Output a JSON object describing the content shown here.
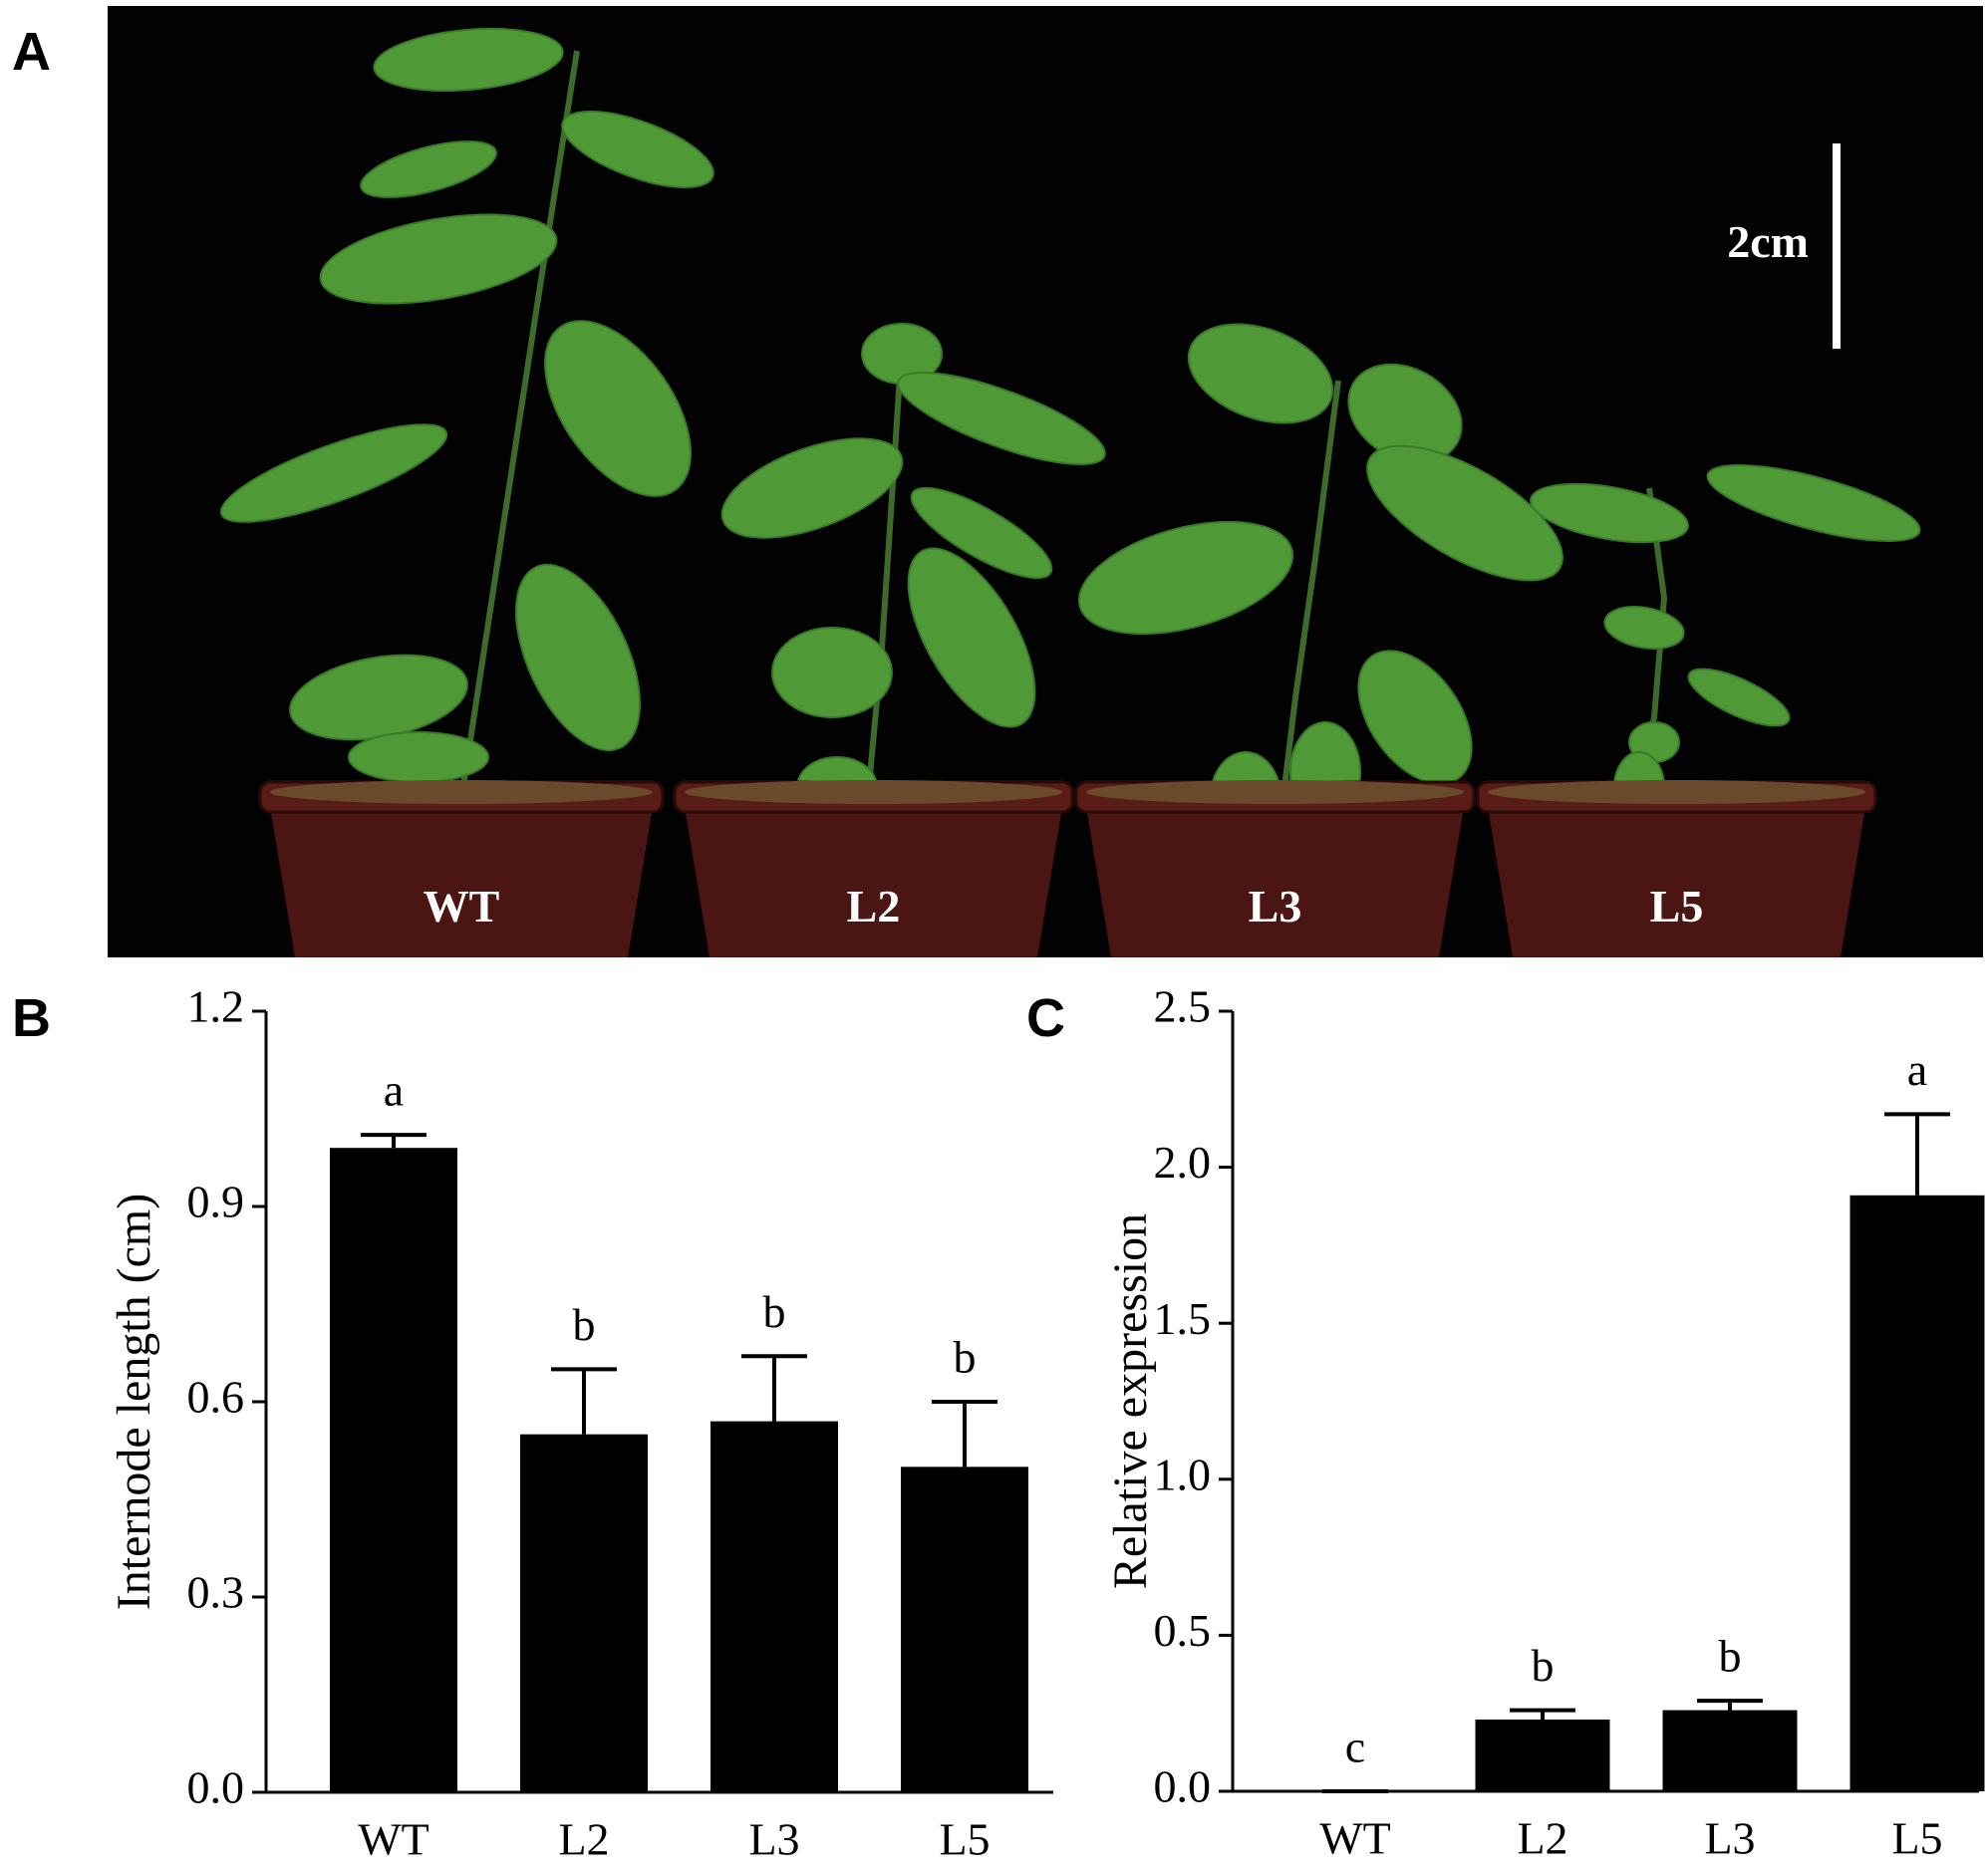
{
  "panel_labels": [
    "A",
    "B",
    "C"
  ],
  "photo": {
    "scale_bar": "2cm",
    "labels": [
      "WT",
      "L2",
      "L3",
      "L5"
    ]
  },
  "chart_data": [
    {
      "type": "bar",
      "ylabel": "Internode length (cm)",
      "categories": [
        "WT",
        "L2",
        "L3",
        "L5"
      ],
      "values": [
        0.99,
        0.55,
        0.57,
        0.5
      ],
      "errors": [
        0.02,
        0.1,
        0.1,
        0.1
      ],
      "annotations": [
        "a",
        "b",
        "b",
        "b"
      ],
      "color": "#000000",
      "ylim": [
        0,
        1.2
      ],
      "yticks": [
        {
          "value": 0,
          "label": "0.0"
        },
        0.3,
        0.6,
        0.9,
        1.2
      ]
    },
    {
      "type": "bar",
      "ylabel": "Relative expression",
      "categories": [
        "WT",
        "L2",
        "L3",
        "L5"
      ],
      "values": [
        0,
        0.23,
        0.26,
        1.91
      ],
      "errors": [
        0,
        0.03,
        0.03,
        0.26
      ],
      "annotations": [
        "c",
        "b",
        "b",
        "a"
      ],
      "color": "#000000",
      "ylim": [
        0,
        2.5
      ],
      "yticks": [
        {
          "value": 0,
          "label": "0.0"
        },
        0.5,
        {
          "value": 1,
          "label": "1.0"
        },
        1.5,
        {
          "value": 2,
          "label": "2.0"
        },
        2.5
      ]
    }
  ]
}
